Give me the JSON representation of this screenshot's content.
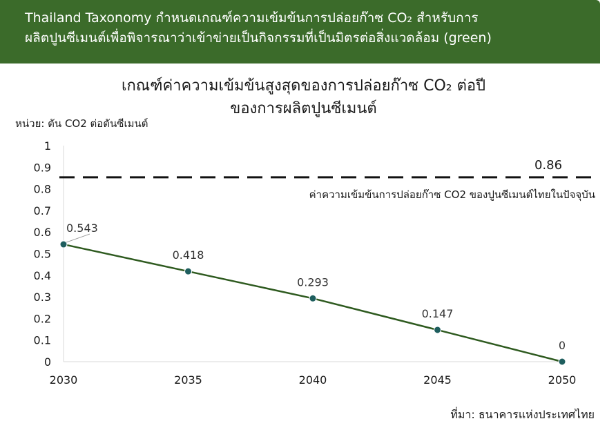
{
  "banner": {
    "line1": "Thailand Taxonomy กำหนดเกณฑ์ความเข้มข้นการปล่อยก๊าซ CO₂ สำหรับการ",
    "line2": "ผลิตปูนซีเมนต์เพื่อพิจารณาว่าเข้าข่ายเป็นกิจกรรมที่เป็นมิตรต่อสิ่งแวดล้อม (green)"
  },
  "source": "ที่มา: ธนาคารแห่งประเทศไทย",
  "colors": {
    "banner": "#3b6b2a",
    "line": "#2e5a1f",
    "marker": "#1e5e5e"
  },
  "chart_data": {
    "type": "line",
    "title_line1": "เกณฑ์ค่าความเข้มข้นสูงสุดของการปล่อยก๊าซ CO₂ ต่อปี",
    "title_line2": "ของการผลิตปูนซีเมนต์",
    "unit_label": "หน่วย: ตัน CO2 ต่อตันซีเมนต์",
    "x": [
      2030,
      2035,
      2040,
      2045,
      2050
    ],
    "x_ticks": [
      "2030",
      "2035",
      "2040",
      "2045",
      "2050"
    ],
    "y_ticks": [
      "1",
      "0.9",
      "0.8",
      "0.7",
      "0.6",
      "0.5",
      "0.4",
      "0.3",
      "0.2",
      "0.1",
      "0"
    ],
    "ylim": [
      0,
      1
    ],
    "grid": false,
    "series": [
      {
        "values": [
          0.543,
          0.418,
          0.293,
          0.147,
          0
        ],
        "labels": [
          "0.543",
          "0.418",
          "0.293",
          "0.147",
          "0"
        ]
      }
    ],
    "reference_line": {
      "value": 0.86,
      "value_label": "0.86",
      "label": "ค่าความเข้มข้นการปล่อยก๊าซ CO2 ของปูนซีเมนต์ไทยในปัจจุบัน"
    }
  }
}
